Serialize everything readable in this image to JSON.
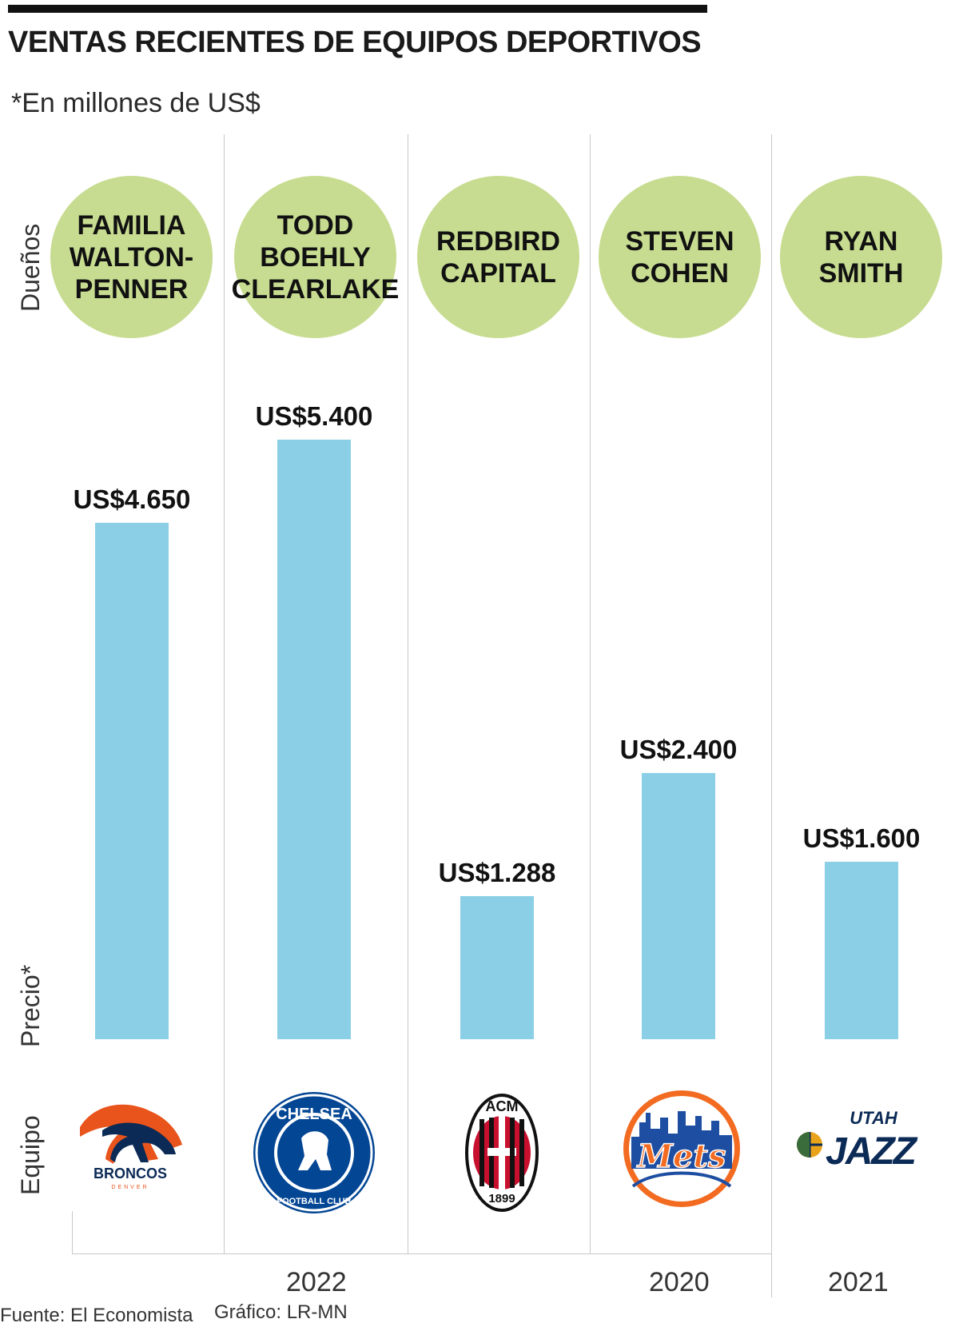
{
  "header": {
    "title": "VENTAS RECIENTES DE EQUIPOS DEPORTIVOS",
    "subtitle": "*En millones de US$"
  },
  "row_labels": {
    "owners": "Dueños",
    "price": "Precio*",
    "team": "Equipo"
  },
  "chart_data": {
    "type": "bar",
    "title": "VENTAS RECIENTES DE EQUIPOS DEPORTIVOS",
    "subtitle": "*En millones de US$",
    "categories": [
      "Broncos",
      "Chelsea",
      "AC Milan",
      "Mets",
      "Utah Jazz"
    ],
    "owners": [
      "FAMILIA\nWALTON-\nPENNER",
      "TODD\nBOEHLY\nCLEARLAKE",
      "REDBIRD\nCAPITAL",
      "STEVEN\nCOHEN",
      "RYAN\nSMITH"
    ],
    "values": [
      4650,
      5400,
      1288,
      2400,
      1600
    ],
    "value_labels": [
      "US$4.650",
      "US$5.400",
      "US$1.288",
      "US$2.400",
      "US$1.600"
    ],
    "ylim": [
      0,
      5400
    ],
    "bar_color": "#8bcfe6",
    "owner_circle_color": "#c7dc90",
    "years": [
      {
        "label": "2022",
        "group": "Broncos, Chelsea, AC Milan"
      },
      {
        "label": "2020",
        "group": "Mets"
      },
      {
        "label": "2021",
        "group": "Utah Jazz"
      }
    ]
  },
  "logos": {
    "broncos": {
      "icon": "broncos-logo",
      "text": "BRONCOS",
      "sub": "DENVER"
    },
    "chelsea": {
      "icon": "chelsea-logo",
      "text": "CHELSEA",
      "sub": "FOOTBALL CLUB"
    },
    "milan": {
      "icon": "acmilan-logo",
      "text": "ACM",
      "sub": "1899"
    },
    "mets": {
      "icon": "mets-logo",
      "text": "Mets"
    },
    "jazz": {
      "icon": "utah-jazz-logo",
      "text": "JAZZ",
      "sub": "UTAH"
    }
  },
  "footer": {
    "source": "Fuente: El Economista",
    "graphic": "Gráfico: LR-MN"
  }
}
